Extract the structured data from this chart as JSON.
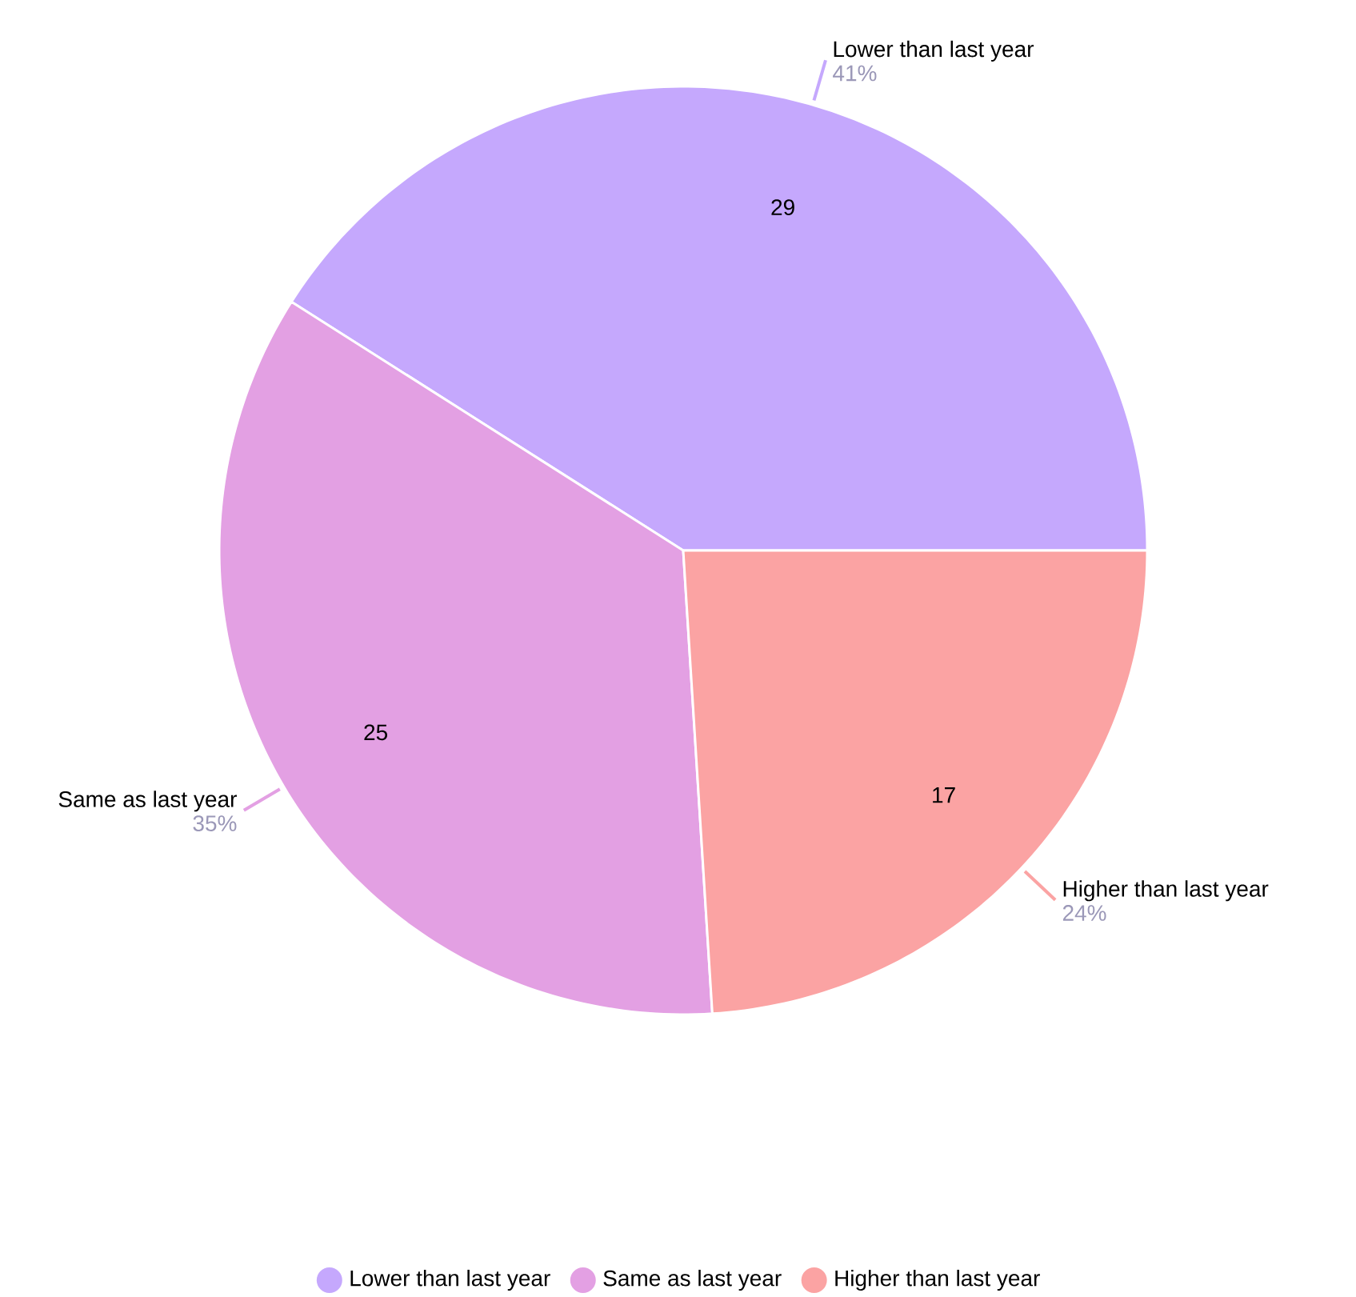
{
  "chart_data": {
    "type": "pie",
    "categories": [
      "Lower than last year",
      "Same as last year",
      "Higher than last year"
    ],
    "values": [
      41,
      35,
      24
    ],
    "colors": [
      "#c5a8fd",
      "#e3a0e3",
      "#fba3a3"
    ],
    "value_labels": [
      "41%",
      "35%",
      "24%"
    ],
    "annotations": [
      "29",
      "25",
      "17"
    ],
    "legend": "bottom"
  }
}
